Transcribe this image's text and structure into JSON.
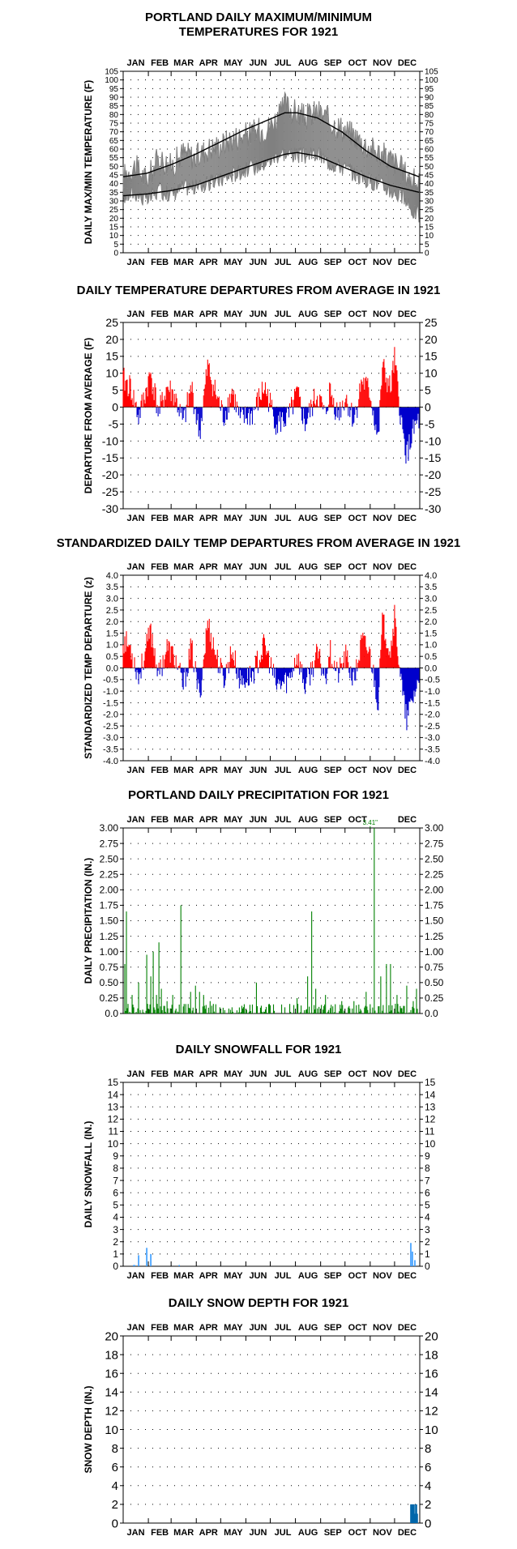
{
  "months": [
    "JAN",
    "FEB",
    "MAR",
    "APR",
    "MAY",
    "JUN",
    "JUL",
    "AUG",
    "SEP",
    "OCT",
    "NOV",
    "DEC"
  ],
  "colors": {
    "max": "#808080",
    "min": "#808080",
    "normal": "#000000",
    "above": "#ff0000",
    "below": "#0000cc",
    "precip": "#008000",
    "snow": "#3399ff",
    "depth": "#0066aa",
    "grid": "#000000"
  },
  "chart_data": [
    {
      "id": "temp",
      "type": "line",
      "title": "PORTLAND DAILY MAXIMUM/MINIMUM",
      "subtitle": "TEMPERATURES FOR 1921",
      "ylabel": "DAILY MAX/MIN TEMPERATURE (F)",
      "ylim": [
        0,
        105
      ],
      "ystep": 5,
      "ytick_labels": [
        "0",
        "5",
        "10",
        "15",
        "20",
        "25",
        "30",
        "35",
        "40",
        "45",
        "50",
        "55",
        "60",
        "65",
        "70",
        "75",
        "80",
        "85",
        "90",
        "95",
        "100",
        "105"
      ],
      "month_labels_top": true,
      "month_labels_bottom": true,
      "series": [
        {
          "key": "max_anchors",
          "x": [
            1,
            15,
            30,
            45,
            60,
            75,
            90,
            105,
            120,
            135,
            150,
            165,
            180,
            195,
            200,
            210,
            225,
            240,
            255,
            270,
            285,
            300,
            315,
            330,
            345,
            355,
            365
          ],
          "values": [
            44,
            50,
            42,
            55,
            50,
            58,
            55,
            60,
            62,
            66,
            68,
            70,
            73,
            80,
            86,
            82,
            78,
            82,
            76,
            72,
            68,
            62,
            58,
            54,
            48,
            42,
            40
          ]
        },
        {
          "key": "min_anchors",
          "x": [
            1,
            15,
            30,
            45,
            60,
            75,
            90,
            105,
            120,
            135,
            150,
            165,
            180,
            195,
            210,
            225,
            240,
            255,
            270,
            285,
            300,
            315,
            330,
            345,
            355,
            365
          ],
          "values": [
            32,
            35,
            30,
            36,
            34,
            38,
            38,
            40,
            42,
            45,
            48,
            50,
            53,
            58,
            57,
            56,
            57,
            52,
            50,
            46,
            42,
            40,
            36,
            32,
            25,
            22
          ]
        },
        {
          "key": "normal_max",
          "x": [
            1,
            30,
            60,
            90,
            120,
            150,
            180,
            200,
            215,
            240,
            270,
            300,
            330,
            365
          ],
          "values": [
            44,
            46,
            51,
            57,
            64,
            71,
            77,
            81,
            81,
            78,
            70,
            59,
            50,
            44
          ]
        },
        {
          "key": "normal_min",
          "x": [
            1,
            30,
            60,
            90,
            120,
            150,
            180,
            200,
            215,
            240,
            270,
            300,
            330,
            365
          ],
          "values": [
            33,
            34,
            36,
            39,
            44,
            49,
            54,
            57,
            58,
            56,
            50,
            44,
            39,
            35
          ]
        }
      ]
    },
    {
      "id": "departure",
      "type": "bar",
      "title": "DAILY TEMPERATURE DEPARTURES FROM AVERAGE IN 1921",
      "ylabel": "DEPARTURE FROM AVERAGE (F)",
      "ylim": [
        -30,
        25
      ],
      "ystep": 5,
      "ytick_labels": [
        "-30",
        "-25",
        "-20",
        "-15",
        "-10",
        "-5",
        "0",
        "5",
        "10",
        "15",
        "20",
        "25"
      ],
      "month_labels_top": true,
      "month_labels_bottom": true,
      "anchors_x": [
        1,
        10,
        20,
        35,
        45,
        55,
        65,
        75,
        85,
        95,
        105,
        115,
        125,
        135,
        145,
        160,
        175,
        190,
        205,
        215,
        225,
        240,
        250,
        255,
        265,
        275,
        285,
        295,
        305,
        315,
        320,
        330,
        335,
        345,
        350,
        355,
        360,
        365
      ],
      "anchors_y": [
        8,
        6,
        -3,
        10,
        -2,
        6,
        3,
        -5,
        6,
        -8,
        12,
        4,
        -3,
        5,
        -4,
        -2,
        6,
        -5,
        -3,
        4,
        -5,
        4,
        -3,
        5,
        -2,
        3,
        -4,
        8,
        4,
        -10,
        12,
        5,
        14,
        -8,
        -14,
        -10,
        -6,
        -4
      ]
    },
    {
      "id": "standardized",
      "type": "bar",
      "title": "STANDARDIZED DAILY TEMP DEPARTURES FROM AVERAGE IN 1921",
      "ylabel": "STANDARDIZED TEMP DEPARTURE (z)",
      "ylim": [
        -4.0,
        4.0
      ],
      "ystep": 0.5,
      "ytick_labels": [
        "-4.0",
        "-3.5",
        "-3.0",
        "-2.5",
        "-2.0",
        "-1.5",
        "-1.0",
        "-0.5",
        "0.0",
        "0.5",
        "1.0",
        "1.5",
        "2.0",
        "2.5",
        "3.0",
        "3.5",
        "4.0"
      ],
      "month_labels_top": true,
      "month_labels_bottom": true,
      "anchors_x": [
        1,
        10,
        20,
        35,
        45,
        55,
        65,
        75,
        85,
        95,
        105,
        115,
        125,
        135,
        145,
        160,
        175,
        190,
        205,
        215,
        225,
        240,
        250,
        255,
        265,
        275,
        285,
        295,
        305,
        315,
        320,
        330,
        335,
        345,
        350,
        355,
        360,
        365
      ],
      "anchors_y": [
        1.2,
        0.9,
        -0.4,
        1.6,
        -0.3,
        0.9,
        0.4,
        -0.8,
        0.9,
        -1.3,
        2.0,
        0.6,
        -0.5,
        0.8,
        -0.6,
        -0.3,
        1.0,
        -0.8,
        -0.5,
        0.6,
        -0.8,
        0.6,
        -0.4,
        0.8,
        -0.3,
        0.5,
        -0.6,
        1.2,
        0.6,
        -1.5,
        2.0,
        0.8,
        2.2,
        -1.2,
        -2.3,
        -1.6,
        -1.0,
        -0.6
      ]
    },
    {
      "id": "precip",
      "type": "bar",
      "title": "PORTLAND DAILY PRECIPITATION FOR 1921",
      "ylabel": "DAILY PRECIPITATION (IN.)",
      "ylim": [
        0,
        3.0
      ],
      "ystep": 0.25,
      "ytick_labels": [
        "0.0",
        "0.25",
        "0.50",
        "0.75",
        "1.00",
        "1.25",
        "1.50",
        "1.75",
        "2.00",
        "2.25",
        "2.50",
        "2.75",
        "3.00"
      ],
      "month_labels_top": true,
      "month_labels_bottom": false,
      "peaks_x": [
        3,
        5,
        12,
        20,
        30,
        35,
        38,
        42,
        45,
        48,
        55,
        62,
        72,
        84,
        90,
        95,
        100,
        108,
        115,
        120,
        135,
        150,
        165,
        180,
        200,
        215,
        228,
        233,
        238,
        250,
        262,
        270,
        285,
        300,
        305,
        310,
        318,
        325,
        330,
        338,
        350,
        358,
        362
      ],
      "peaks_y": [
        0.8,
        1.65,
        0.3,
        0.5,
        0.95,
        0.6,
        1.0,
        0.3,
        1.15,
        0.4,
        0.2,
        0.3,
        1.75,
        0.35,
        0.45,
        0.35,
        0.3,
        0.2,
        0.15,
        0.1,
        0.1,
        0.15,
        0.5,
        0.15,
        0.1,
        0.25,
        0.6,
        1.65,
        0.4,
        0.3,
        0.15,
        0.2,
        0.2,
        0.35,
        0.15,
        3.41,
        0.6,
        0.8,
        0.8,
        0.3,
        0.45,
        0.2,
        0.4
      ],
      "annotation": {
        "x": 305,
        "text": "3.41\""
      }
    },
    {
      "id": "snowfall",
      "type": "bar",
      "title": "DAILY SNOWFALL FOR 1921",
      "ylabel": "DAILY SNOWFALL (IN.)",
      "ylim": [
        0,
        15
      ],
      "ystep": 1,
      "ytick_labels": [
        "0",
        "1",
        "2",
        "3",
        "4",
        "5",
        "6",
        "7",
        "8",
        "9",
        "10",
        "11",
        "12",
        "13",
        "14",
        "15"
      ],
      "month_labels_top": true,
      "month_labels_bottom": true,
      "x": [
        14,
        15,
        20,
        30,
        35,
        70,
        355,
        357,
        360
      ],
      "values": [
        0.1,
        0.1,
        0.9,
        1.5,
        1.0,
        0.1,
        1.9,
        1.2,
        0.5
      ]
    },
    {
      "id": "snowdepth",
      "type": "bar",
      "title": "DAILY SNOW DEPTH FOR 1921",
      "ylabel": "SNOW DEPTH (IN.)",
      "ylim": [
        0,
        20
      ],
      "ystep": 2,
      "ytick_labels": [
        "0",
        "2",
        "4",
        "6",
        "8",
        "10",
        "12",
        "14",
        "16",
        "18",
        "20"
      ],
      "month_labels_top": true,
      "month_labels_bottom": true,
      "x": [
        355,
        356,
        357,
        358,
        359,
        360,
        361,
        362,
        363
      ],
      "values": [
        2,
        2,
        2,
        2,
        2,
        1,
        2,
        2,
        1
      ]
    }
  ]
}
